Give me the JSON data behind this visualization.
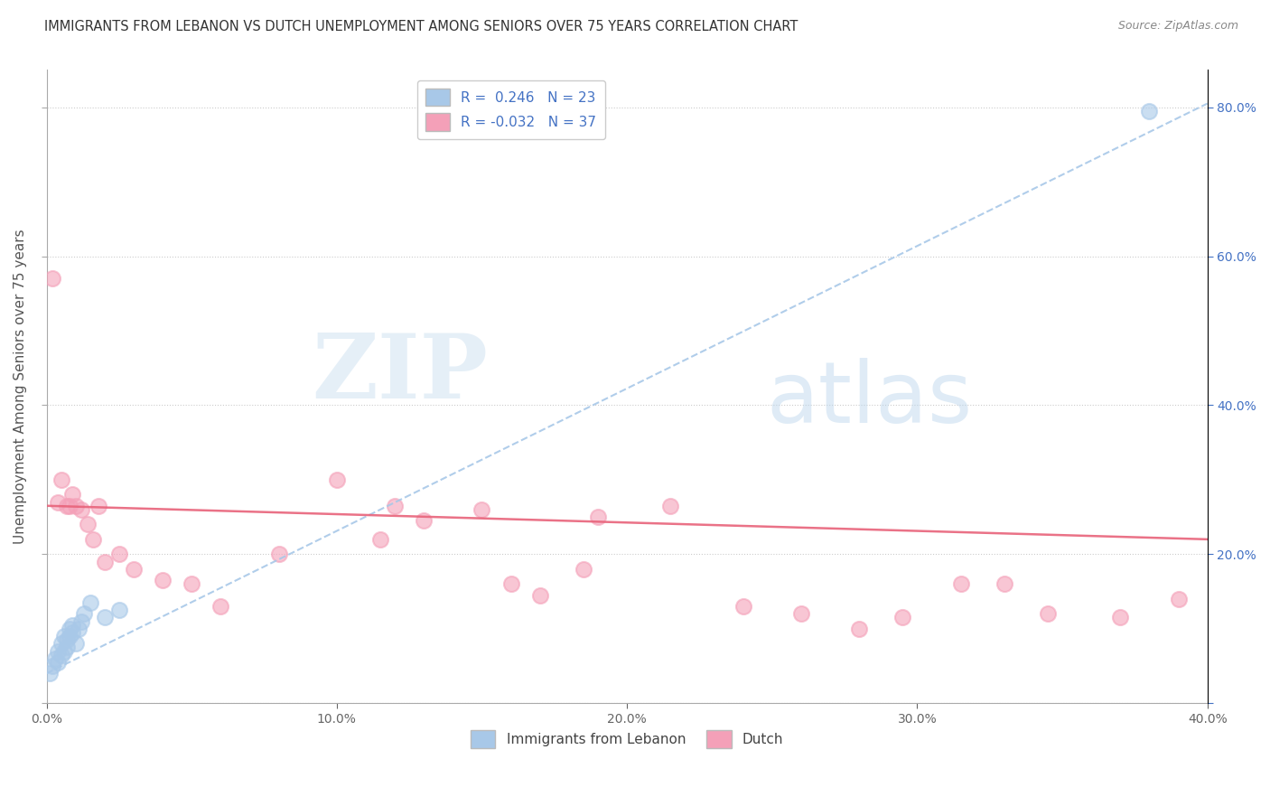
{
  "title": "IMMIGRANTS FROM LEBANON VS DUTCH UNEMPLOYMENT AMONG SENIORS OVER 75 YEARS CORRELATION CHART",
  "source": "Source: ZipAtlas.com",
  "ylabel": "Unemployment Among Seniors over 75 years",
  "legend_label_blue": "Immigrants from Lebanon",
  "legend_label_pink": "Dutch",
  "R_blue": 0.246,
  "N_blue": 23,
  "R_pink": -0.032,
  "N_pink": 37,
  "xmin": 0.0,
  "xmax": 0.4,
  "ymin": 0.0,
  "ymax": 0.85,
  "x_ticks": [
    0.0,
    0.05,
    0.1,
    0.15,
    0.2,
    0.25,
    0.3,
    0.35,
    0.4
  ],
  "x_tick_labels": [
    "0.0%",
    "",
    "10.0%",
    "",
    "20.0%",
    "",
    "30.0%",
    "",
    "40.0%"
  ],
  "y_ticks_right": [
    0.0,
    0.2,
    0.4,
    0.6,
    0.8
  ],
  "y_tick_labels_right": [
    "",
    "20.0%",
    "40.0%",
    "60.0%",
    "80.0%"
  ],
  "blue_color": "#a8c8e8",
  "pink_color": "#f4a0b8",
  "blue_line_color": "#a8c8e8",
  "pink_line_color": "#e8637a",
  "watermark_zip": "ZIP",
  "watermark_atlas": "atlas",
  "blue_scatter_x": [
    0.001,
    0.002,
    0.003,
    0.004,
    0.004,
    0.005,
    0.005,
    0.006,
    0.006,
    0.007,
    0.007,
    0.008,
    0.008,
    0.009,
    0.009,
    0.01,
    0.011,
    0.012,
    0.013,
    0.015,
    0.02,
    0.025,
    0.38
  ],
  "blue_scatter_y": [
    0.04,
    0.05,
    0.06,
    0.055,
    0.07,
    0.065,
    0.08,
    0.07,
    0.09,
    0.075,
    0.085,
    0.09,
    0.1,
    0.095,
    0.105,
    0.08,
    0.1,
    0.11,
    0.12,
    0.135,
    0.115,
    0.125,
    0.795
  ],
  "pink_scatter_x": [
    0.002,
    0.004,
    0.005,
    0.007,
    0.008,
    0.009,
    0.01,
    0.012,
    0.014,
    0.016,
    0.018,
    0.02,
    0.025,
    0.03,
    0.04,
    0.05,
    0.06,
    0.08,
    0.1,
    0.115,
    0.12,
    0.13,
    0.15,
    0.16,
    0.17,
    0.185,
    0.19,
    0.215,
    0.24,
    0.26,
    0.28,
    0.295,
    0.315,
    0.33,
    0.345,
    0.37,
    0.39
  ],
  "pink_scatter_y": [
    0.57,
    0.27,
    0.3,
    0.265,
    0.265,
    0.28,
    0.265,
    0.26,
    0.24,
    0.22,
    0.265,
    0.19,
    0.2,
    0.18,
    0.165,
    0.16,
    0.13,
    0.2,
    0.3,
    0.22,
    0.265,
    0.245,
    0.26,
    0.16,
    0.145,
    0.18,
    0.25,
    0.265,
    0.13,
    0.12,
    0.1,
    0.115,
    0.16,
    0.16,
    0.12,
    0.115,
    0.14
  ]
}
